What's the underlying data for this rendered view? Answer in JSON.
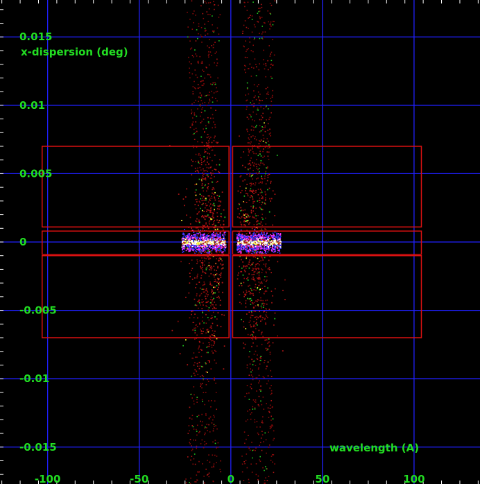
{
  "chart_data": {
    "type": "scatter",
    "xlabel": "wavelength (A)",
    "ylabel": "x-dispersion (deg)",
    "xlim": [
      -126,
      136
    ],
    "ylim": [
      -0.0177,
      0.0177
    ],
    "x_ticks": [
      -100,
      -50,
      0,
      50,
      100
    ],
    "x_tick_labels": [
      "-100",
      "-50",
      "0",
      "50",
      "100"
    ],
    "y_ticks": [
      -0.015,
      -0.01,
      -0.005,
      0,
      0.005,
      0.01,
      0.015
    ],
    "y_tick_labels": [
      "-0.015",
      "-0.01",
      "-0.005",
      "0",
      "0.005",
      "0.01",
      "0.015"
    ],
    "grid": true,
    "regions": [
      {
        "x0": -103,
        "x1": -1,
        "y0": 0.0011,
        "y1": 0.007
      },
      {
        "x0": 1,
        "x1": 104,
        "y0": 0.0011,
        "y1": 0.007
      },
      {
        "x0": -103,
        "x1": -1,
        "y0": -0.0009,
        "y1": 0.0008
      },
      {
        "x0": 1,
        "x1": 104,
        "y0": -0.0009,
        "y1": 0.0008
      },
      {
        "x0": -103,
        "x1": -1,
        "y0": -0.007,
        "y1": -0.001
      },
      {
        "x0": 1,
        "x1": 104,
        "y0": -0.007,
        "y1": -0.001
      }
    ],
    "clusters": [
      {
        "x_center": -15,
        "x_halfwidth": 12,
        "y_halfwidth": 0.0006
      },
      {
        "x_center": 15,
        "x_halfwidth": 12,
        "y_halfwidth": 0.0006
      }
    ],
    "scatter_bands": [
      {
        "x_min": -25,
        "x_max": -5
      },
      {
        "x_min": 5,
        "x_max": 25
      }
    ],
    "colors": {
      "background": "#000000",
      "grid": "#2020ff",
      "text": "#22dd22",
      "regions": "#dd1111",
      "photons": [
        "#8a0a0a",
        "#b01515",
        "#22cc22",
        "#ffffff",
        "#ffff33",
        "#3333ff",
        "#ff33ff"
      ]
    }
  }
}
